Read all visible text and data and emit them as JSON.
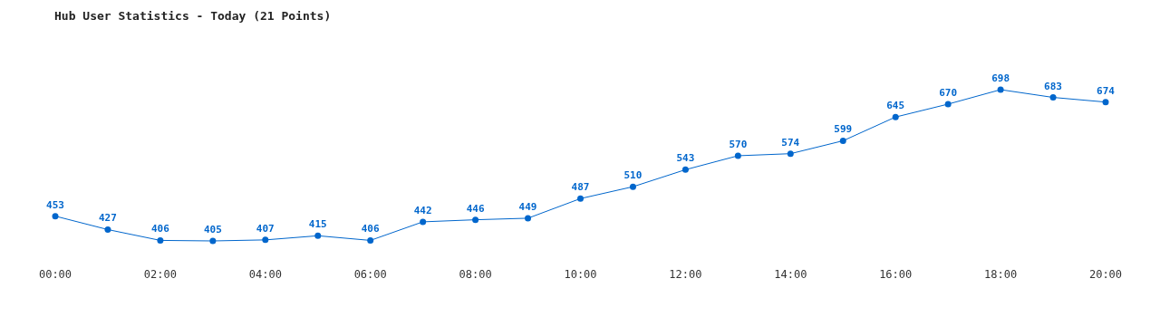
{
  "chart_data": {
    "type": "line",
    "title": "Hub User Statistics - Today (21 Points)",
    "x": [
      0,
      1,
      2,
      3,
      4,
      5,
      6,
      7,
      8,
      9,
      10,
      11,
      12,
      13,
      14,
      15,
      16,
      17,
      18,
      19,
      20
    ],
    "series": [
      {
        "color": "#0066cc",
        "values": [
          453,
          427,
          406,
          405,
          407,
          415,
          406,
          442,
          446,
          449,
          487,
          510,
          543,
          570,
          574,
          599,
          645,
          670,
          698,
          683,
          674
        ]
      }
    ],
    "xlim": [
      0,
      20
    ],
    "xticks": [
      {
        "value": 0,
        "label": "00:00"
      },
      {
        "value": 2,
        "label": "02:00"
      },
      {
        "value": 4,
        "label": "04:00"
      },
      {
        "value": 6,
        "label": "06:00"
      },
      {
        "value": 8,
        "label": "08:00"
      },
      {
        "value": 10,
        "label": "10:00"
      },
      {
        "value": 12,
        "label": "12:00"
      },
      {
        "value": 14,
        "label": "14:00"
      },
      {
        "value": 16,
        "label": "16:00"
      },
      {
        "value": 18,
        "label": "18:00"
      },
      {
        "value": 20,
        "label": "20:00"
      }
    ],
    "tick_labels": "x",
    "data_labels": true,
    "marker": "circle"
  }
}
